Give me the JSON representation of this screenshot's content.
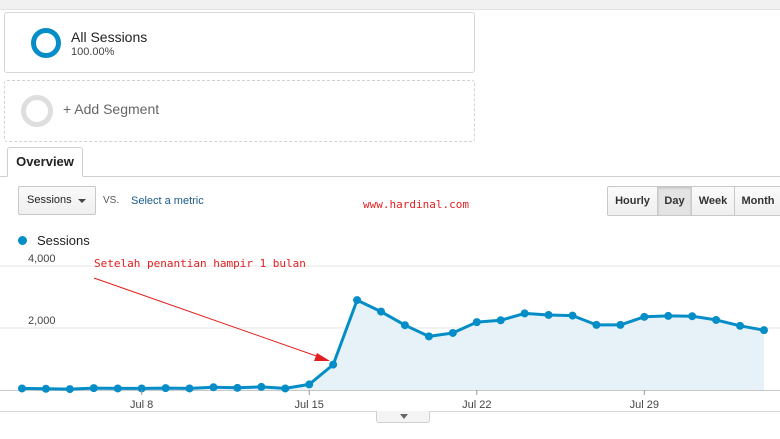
{
  "segments": {
    "active": {
      "title": "All Sessions",
      "percent": "100.00%",
      "color": "#058dc7"
    },
    "add_label": "+ Add Segment"
  },
  "tabs": [
    {
      "label": "Overview",
      "active": true
    }
  ],
  "controls": {
    "metric_select": "Sessions",
    "vs_label": "VS.",
    "select_metric_link": "Select a metric",
    "periods": [
      {
        "label": "Hourly",
        "active": false
      },
      {
        "label": "Day",
        "active": true
      },
      {
        "label": "Week",
        "active": false
      },
      {
        "label": "Month",
        "active": false
      }
    ]
  },
  "watermark": "www.hardinal.com",
  "annotation": "Setelah penantian hampir 1 bulan",
  "legend": {
    "label": "Sessions",
    "color": "#058dc7"
  },
  "chart_data": {
    "type": "area",
    "series": [
      {
        "name": "Sessions",
        "values": [
          50,
          40,
          30,
          60,
          50,
          50,
          60,
          50,
          90,
          70,
          100,
          50,
          180,
          820,
          2900,
          2530,
          2090,
          1730,
          1840,
          2190,
          2250,
          2470,
          2420,
          2400,
          2100,
          2100,
          2360,
          2390,
          2380,
          2260,
          2070,
          1930
        ]
      }
    ],
    "x_start_label": "",
    "x_ticks": [
      {
        "label": "Jul 8",
        "index": 5
      },
      {
        "label": "Jul 15",
        "index": 12
      },
      {
        "label": "Jul 22",
        "index": 19
      },
      {
        "label": "Jul 29",
        "index": 26
      }
    ],
    "y_ticks": [
      {
        "label": "2,000",
        "value": 2000
      },
      {
        "label": "4,000",
        "value": 4000
      }
    ],
    "ylim": [
      0,
      4000
    ],
    "grid": true,
    "line_color": "#058dc7",
    "fill_color": "#e6f2f8"
  }
}
